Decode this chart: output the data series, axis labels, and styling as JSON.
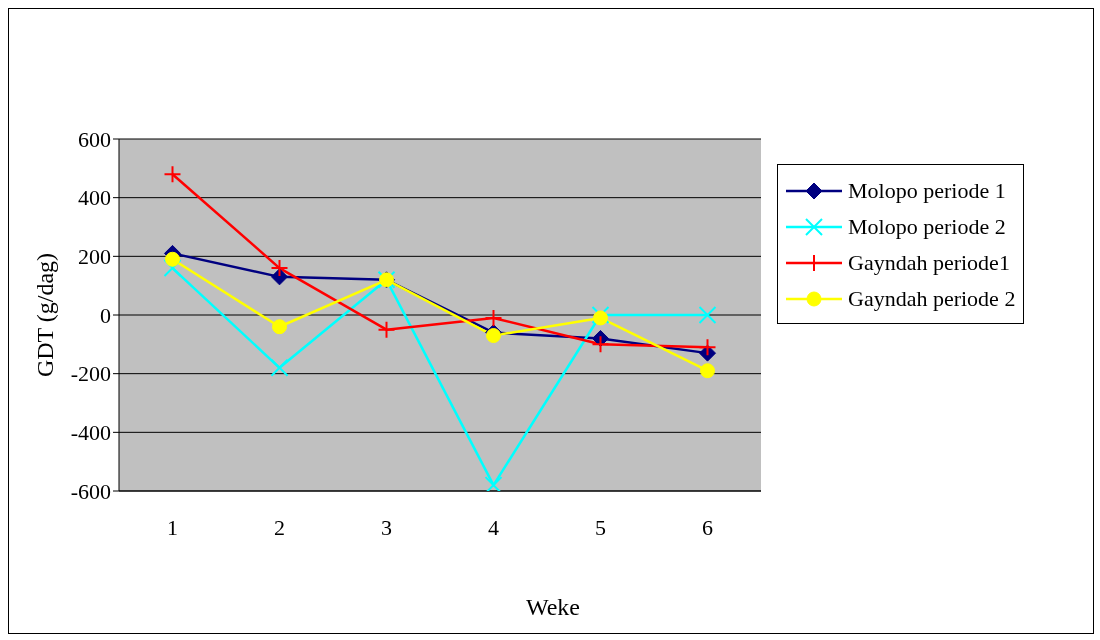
{
  "chart_data": {
    "type": "line",
    "xlabel": "Weke",
    "ylabel": "GDT (g/dag)",
    "categories": [
      "1",
      "2",
      "3",
      "4",
      "5",
      "6"
    ],
    "series": [
      {
        "name": "Molopo periode 1",
        "color": "#000080",
        "marker": "diamond",
        "values": [
          210,
          130,
          120,
          -60,
          -80,
          -130
        ]
      },
      {
        "name": "Molopo periode 2",
        "color": "#00ffff",
        "marker": "x",
        "values": [
          160,
          -180,
          120,
          -580,
          0,
          0
        ]
      },
      {
        "name": "Gayndah periode1",
        "color": "#ff0000",
        "marker": "cross",
        "values": [
          480,
          160,
          -50,
          -10,
          -100,
          -110
        ]
      },
      {
        "name": "Gayndah periode 2",
        "color": "#ffff00",
        "marker": "circle",
        "values": [
          190,
          -40,
          120,
          -70,
          -10,
          -190
        ]
      }
    ],
    "ylim": [
      -600,
      600
    ],
    "yticks": [
      -600,
      -400,
      -200,
      0,
      200,
      400,
      600
    ],
    "grid": "y",
    "legend": "right"
  }
}
